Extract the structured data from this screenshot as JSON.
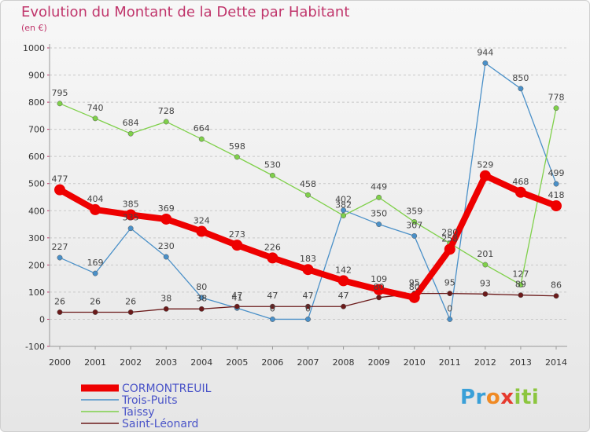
{
  "title": "Evolution du Montant de la Dette par Habitant",
  "subtitle": "(en €)",
  "logo_text": "Proxiti",
  "chart_data": {
    "type": "line",
    "title": "Evolution du Montant de la Dette par Habitant",
    "ylabel": "(en €)",
    "xlabel": "",
    "x": [
      "2000",
      "2001",
      "2002",
      "2003",
      "2004",
      "2005",
      "2006",
      "2007",
      "2008",
      "2009",
      "2010",
      "2011",
      "2012",
      "2013",
      "2014"
    ],
    "ylim": [
      -100,
      1000
    ],
    "yticks": [
      -100,
      0,
      100,
      200,
      300,
      400,
      500,
      600,
      700,
      800,
      900,
      1000
    ],
    "grid": "horizontal dashed",
    "legend_position": "bottom-left",
    "series": [
      {
        "name": "CORMONTREUIL",
        "color": "#ee0000",
        "values": [
          477,
          404,
          385,
          369,
          324,
          273,
          226,
          183,
          142,
          109,
          80,
          258,
          529,
          468,
          418
        ]
      },
      {
        "name": "Trois-Puits",
        "color": "#4a90c8",
        "values": [
          227,
          169,
          335,
          230,
          80,
          41,
          0,
          0,
          402,
          350,
          307,
          0,
          944,
          850,
          499
        ]
      },
      {
        "name": "Taissy",
        "color": "#7fd04a",
        "values": [
          795,
          740,
          684,
          728,
          664,
          598,
          530,
          458,
          382,
          449,
          359,
          280,
          201,
          127,
          778
        ]
      },
      {
        "name": "Saint-Léonard",
        "color": "#6b1a1a",
        "values": [
          26,
          26,
          26,
          38,
          38,
          47,
          47,
          47,
          47,
          80,
          95,
          95,
          93,
          89,
          86
        ]
      }
    ]
  }
}
